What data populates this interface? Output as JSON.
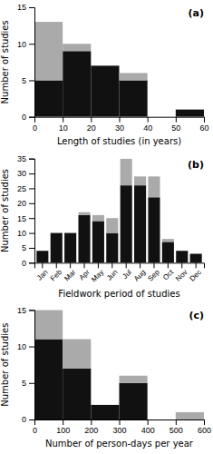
{
  "chart_data": [
    {
      "type": "histogram",
      "title": "(a)",
      "xlabel": "Length of studies (in years)",
      "ylabel": "Number of studies",
      "bins": [
        0,
        10,
        20,
        30,
        40,
        50,
        60
      ],
      "series": [
        {
          "color": "#111111",
          "values": [
            5,
            9,
            7,
            5,
            0,
            1
          ]
        },
        {
          "color": "#aaaaaa",
          "values": [
            8,
            1,
            0,
            1,
            0,
            0
          ]
        }
      ],
      "stacked": true,
      "xlim": [
        0,
        60
      ],
      "xticks": [
        0,
        10,
        20,
        30,
        40,
        50,
        60
      ],
      "ylim": [
        0,
        15
      ],
      "yticks": [
        0,
        5,
        10,
        15
      ]
    },
    {
      "type": "bar",
      "title": "(b)",
      "xlabel": "Fieldwork period of studies",
      "ylabel": "Number of studies",
      "categories": [
        "Jan",
        "Feb",
        "Mar",
        "Apr",
        "May",
        "Jun",
        "Jul",
        "Aug",
        "Sep",
        "Oct",
        "Nov",
        "Dec"
      ],
      "series": [
        {
          "color": "#111111",
          "values": [
            4,
            10,
            10,
            16,
            14,
            10,
            26,
            26,
            22,
            7,
            4,
            3
          ]
        },
        {
          "color": "#aaaaaa",
          "values": [
            0,
            0,
            0,
            1,
            2,
            5,
            9,
            3,
            7,
            1,
            0,
            0
          ]
        }
      ],
      "stacked": true,
      "ylim": [
        0,
        35
      ],
      "yticks": [
        0,
        5,
        10,
        15,
        20,
        25,
        30,
        35
      ]
    },
    {
      "type": "histogram",
      "title": "(c)",
      "xlabel": "Number of person-days per year",
      "ylabel": "Number of studies",
      "bins": [
        0,
        100,
        200,
        300,
        400,
        500,
        600
      ],
      "series": [
        {
          "color": "#111111",
          "values": [
            11,
            7,
            2,
            5,
            0,
            0
          ]
        },
        {
          "color": "#aaaaaa",
          "values": [
            4,
            4,
            0,
            1,
            0,
            1
          ]
        }
      ],
      "stacked": true,
      "xlim": [
        0,
        600
      ],
      "xticks": [
        0,
        100,
        200,
        300,
        400,
        500,
        600
      ],
      "ylim": [
        0,
        15
      ],
      "yticks": [
        0,
        5,
        10,
        15
      ]
    }
  ]
}
